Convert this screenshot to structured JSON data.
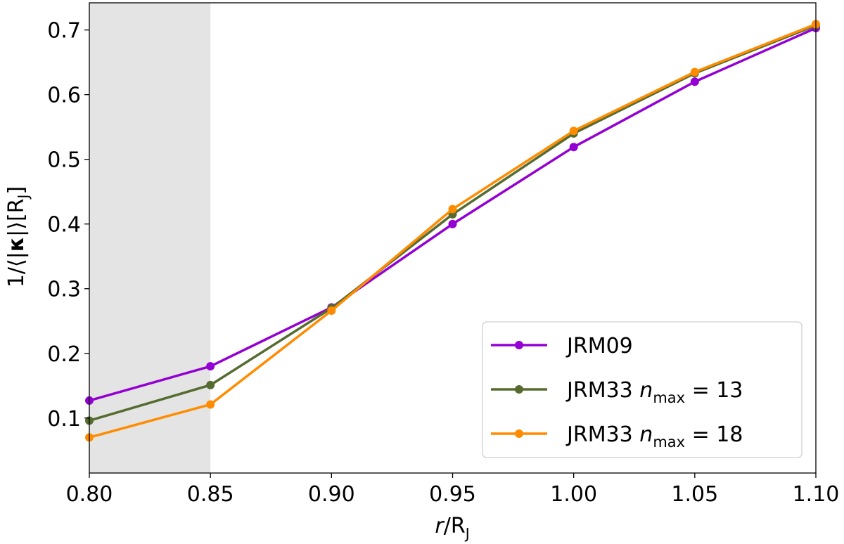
{
  "chart_data": {
    "type": "line",
    "xlabel": {
      "var": "r",
      "sep": "/",
      "main": "R",
      "sub": "J"
    },
    "ylabel": {
      "prefix": "1/⟨|",
      "bold": "κ",
      "mid": "|⟩[R",
      "sub": "J",
      "suffix": "]"
    },
    "xlim": [
      0.8,
      1.1
    ],
    "ylim": [
      0.015,
      0.742
    ],
    "xticks": [
      0.8,
      0.85,
      0.9,
      0.95,
      1.0,
      1.05,
      1.1
    ],
    "xtick_labels": [
      "0.80",
      "0.85",
      "0.90",
      "0.95",
      "1.00",
      "1.05",
      "1.10"
    ],
    "yticks": [
      0.1,
      0.2,
      0.3,
      0.4,
      0.5,
      0.6,
      0.7
    ],
    "ytick_labels": [
      "0.1",
      "0.2",
      "0.3",
      "0.4",
      "0.5",
      "0.6",
      "0.7"
    ],
    "shaded_region": {
      "x": [
        0.8,
        0.85
      ],
      "color": "#e4e4e4"
    },
    "grid": false,
    "legend_position": "lower-right",
    "x": [
      0.8,
      0.85,
      0.9,
      0.95,
      1.0,
      1.05,
      1.1
    ],
    "series": [
      {
        "name": "JRM09",
        "legend": {
          "main": "JRM09",
          "var": "",
          "sub": "",
          "rest": ""
        },
        "color": "#9400d3",
        "values": [
          0.127,
          0.18,
          0.271,
          0.4,
          0.519,
          0.62,
          0.703
        ]
      },
      {
        "name": "JRM33 nmax = 13",
        "legend": {
          "main": "JRM33 ",
          "var": "n",
          "sub": "max",
          "rest": " = 13"
        },
        "color": "#556b2f",
        "values": [
          0.096,
          0.151,
          0.27,
          0.415,
          0.54,
          0.633,
          0.707
        ]
      },
      {
        "name": "JRM33 nmax = 18",
        "legend": {
          "main": "JRM33 ",
          "var": "n",
          "sub": "max",
          "rest": " = 18"
        },
        "color": "#ff8c00",
        "values": [
          0.07,
          0.121,
          0.266,
          0.423,
          0.544,
          0.635,
          0.709
        ]
      }
    ]
  }
}
